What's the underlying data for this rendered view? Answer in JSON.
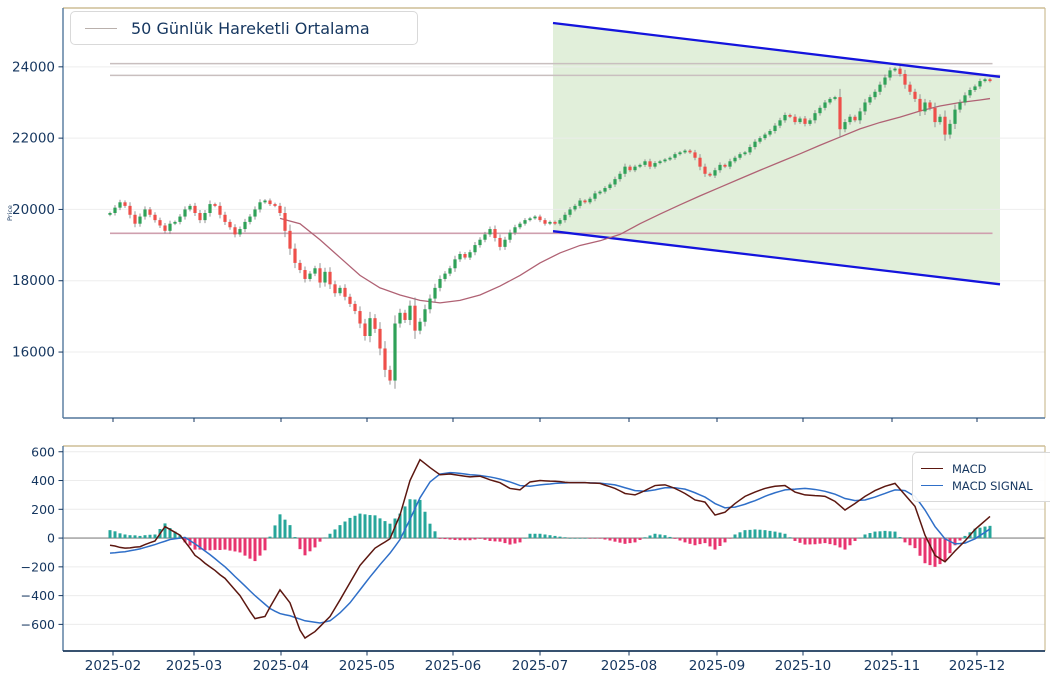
{
  "figure_title": "Candlestick price chart with 50-day moving average, descending channel and MACD indicator",
  "price_panel": {
    "ylabel": "Price",
    "legend": {
      "label": "50 Günlük Hareketli Ortalama",
      "sample_color": "#b9b0ac"
    },
    "yticks": [
      16000,
      18000,
      20000,
      22000,
      24000
    ],
    "ylim": [
      14150,
      25650
    ]
  },
  "macd_panel": {
    "legend": {
      "macd_label": "MACD",
      "signal_label": "MACD SIGNAL"
    },
    "yticks": [
      600,
      400,
      200,
      0,
      -200,
      -400,
      -600
    ],
    "ylim": [
      -785,
      640
    ]
  },
  "xticks": {
    "labels": [
      "2025-02",
      "2025-03",
      "2025-04",
      "2025-05",
      "2025-06",
      "2025-07",
      "2025-08",
      "2025-09",
      "2025-10",
      "2025-11",
      "2025-12"
    ],
    "idx": [
      0.6,
      16.8,
      34.2,
      51.4,
      68.6,
      86.0,
      103.8,
      121.4,
      138.6,
      156.4,
      173.4
    ]
  },
  "colors": {
    "candle_up": "#2fa158",
    "candle_down": "#ee4f4a",
    "wick": "#8a8a8a",
    "ma_line": "#b06274",
    "hline_gray": "#c9bfbf",
    "hline_rose": "#cf9fae",
    "channel_line": "#1414dd",
    "channel_fill": "#e1efda",
    "macd_line": "#5c1710",
    "signal_line": "#2f6fc8",
    "hist_up": "#26a69a",
    "hist_down": "#e8336e",
    "tick_text": "#15365f",
    "grid": "#ececec",
    "zero_line": "#9a9a9a",
    "spine_tan": "#cdbd96",
    "spine_blue": "#52779c",
    "axis_dark": "#1b3a5c"
  },
  "chart_data": [
    {
      "type": "candlestick",
      "title": "",
      "ylabel": "Price",
      "legend": [
        "50 Günlük Hareketli Ortalama"
      ],
      "ylim": [
        14150,
        25650
      ],
      "yticks": [
        16000,
        18000,
        20000,
        22000,
        24000
      ],
      "open_rule": "open equals previous close (first open 19850)",
      "wick_rule": {
        "base": 25,
        "body_factor": 0.3,
        "cap": 230
      },
      "close": [
        19900,
        20050,
        20200,
        20100,
        19850,
        19600,
        19800,
        20000,
        19850,
        19700,
        19550,
        19400,
        19600,
        19650,
        19800,
        20000,
        20100,
        19900,
        19700,
        19900,
        20150,
        20100,
        19850,
        19650,
        19500,
        19300,
        19450,
        19650,
        19800,
        20000,
        20200,
        20250,
        20150,
        20100,
        19900,
        19400,
        18900,
        18500,
        18300,
        18050,
        18200,
        18350,
        17950,
        18250,
        17900,
        17650,
        17800,
        17550,
        17350,
        17150,
        16800,
        16450,
        16950,
        16650,
        16100,
        15500,
        15200,
        16800,
        17100,
        16900,
        17300,
        16600,
        16850,
        17200,
        17500,
        17800,
        18050,
        18200,
        18350,
        18600,
        18750,
        18650,
        18800,
        19000,
        19150,
        19300,
        19450,
        19200,
        18950,
        19150,
        19350,
        19500,
        19600,
        19700,
        19750,
        19800,
        19700,
        19600,
        19650,
        19600,
        19700,
        19850,
        20000,
        20100,
        20250,
        20200,
        20300,
        20450,
        20500,
        20600,
        20700,
        20850,
        21000,
        21200,
        21100,
        21200,
        21250,
        21350,
        21200,
        21300,
        21350,
        21400,
        21450,
        21550,
        21600,
        21650,
        21600,
        21450,
        21200,
        21000,
        20950,
        21100,
        21250,
        21200,
        21350,
        21450,
        21550,
        21600,
        21750,
        21900,
        22000,
        22100,
        22200,
        22350,
        22500,
        22650,
        22600,
        22450,
        22550,
        22400,
        22500,
        22700,
        22850,
        23000,
        23100,
        23150,
        22250,
        22450,
        22600,
        22500,
        22750,
        23000,
        23150,
        23300,
        23500,
        23700,
        23900,
        23950,
        23800,
        23500,
        23300,
        23100,
        22750,
        23000,
        22850,
        22450,
        22600,
        22100,
        22400,
        22800,
        23000,
        23200,
        23350,
        23450,
        23600,
        23650,
        23600
      ],
      "ma50_points": [
        [
          34,
          19750
        ],
        [
          38,
          19600
        ],
        [
          42,
          19150
        ],
        [
          46,
          18650
        ],
        [
          50,
          18150
        ],
        [
          54,
          17800
        ],
        [
          58,
          17600
        ],
        [
          62,
          17450
        ],
        [
          66,
          17380
        ],
        [
          70,
          17450
        ],
        [
          74,
          17600
        ],
        [
          78,
          17850
        ],
        [
          82,
          18150
        ],
        [
          86,
          18500
        ],
        [
          90,
          18780
        ],
        [
          94,
          18990
        ],
        [
          98,
          19120
        ],
        [
          102,
          19300
        ],
        [
          106,
          19600
        ],
        [
          110,
          19870
        ],
        [
          114,
          20130
        ],
        [
          118,
          20380
        ],
        [
          122,
          20620
        ],
        [
          126,
          20860
        ],
        [
          130,
          21100
        ],
        [
          134,
          21330
        ],
        [
          138,
          21560
        ],
        [
          142,
          21800
        ],
        [
          146,
          22030
        ],
        [
          150,
          22260
        ],
        [
          154,
          22440
        ],
        [
          158,
          22590
        ],
        [
          162,
          22760
        ],
        [
          166,
          22900
        ],
        [
          170,
          23000
        ],
        [
          174,
          23070
        ],
        [
          176,
          23110
        ]
      ],
      "hlines": [
        {
          "value": 24090,
          "x0_idx": 0,
          "x1_idx": 176.5,
          "color_key": "hline_gray"
        },
        {
          "value": 23760,
          "x0_idx": 0,
          "x1_idx": 178.0,
          "color_key": "hline_gray"
        },
        {
          "value": 19330,
          "x0_idx": 0,
          "x1_idx": 176.5,
          "color_key": "hline_rose"
        }
      ],
      "channel": {
        "x0_idx": 88.6,
        "x1_idx": 178,
        "top_values": [
          25230,
          23720
        ],
        "bottom_values": [
          19390,
          17900
        ]
      }
    },
    {
      "type": "macd",
      "legend": [
        "MACD",
        "MACD SIGNAL"
      ],
      "ylim": [
        -785,
        640
      ],
      "yticks": [
        600,
        400,
        200,
        0,
        -200,
        -400,
        -600
      ],
      "histogram_rule": "histogram = macd - signal",
      "macd": [
        -50,
        -55,
        -65,
        -70,
        -68,
        -63,
        -60,
        -45,
        -32,
        -20,
        30,
        80,
        60,
        40,
        20,
        -25,
        -70,
        -120,
        -145,
        -175,
        -200,
        -225,
        -255,
        -280,
        -320,
        -360,
        -400,
        -455,
        -510,
        -560,
        -552,
        -545,
        -480,
        -420,
        -360,
        -405,
        -450,
        -545,
        -640,
        -695,
        -672,
        -650,
        -615,
        -580,
        -545,
        -488,
        -430,
        -370,
        -310,
        -250,
        -190,
        -150,
        -110,
        -70,
        -48,
        -27,
        -5,
        78,
        160,
        280,
        400,
        473,
        545,
        518,
        490,
        465,
        440,
        443,
        445,
        440,
        435,
        430,
        425,
        428,
        430,
        418,
        405,
        395,
        385,
        365,
        345,
        340,
        335,
        363,
        390,
        395,
        400,
        398,
        396,
        395,
        392,
        388,
        385,
        385,
        385,
        385,
        383,
        382,
        380,
        368,
        357,
        345,
        328,
        310,
        305,
        300,
        315,
        330,
        348,
        365,
        368,
        370,
        358,
        345,
        328,
        310,
        288,
        265,
        258,
        250,
        205,
        160,
        170,
        180,
        210,
        240,
        265,
        290,
        305,
        320,
        333,
        345,
        353,
        360,
        363,
        365,
        343,
        320,
        310,
        300,
        298,
        295,
        293,
        290,
        273,
        255,
        225,
        195,
        218,
        240,
        265,
        290,
        310,
        330,
        345,
        360,
        370,
        380,
        340,
        300,
        260,
        220,
        120,
        20,
        -50,
        -120,
        -143,
        -165,
        -128,
        -90,
        -55,
        -20,
        20,
        60,
        90,
        120,
        150
      ],
      "signal": [
        -105,
        -102,
        -98,
        -95,
        -88,
        -82,
        -75,
        -65,
        -55,
        -45,
        -33,
        -22,
        -10,
        -5,
        0,
        5,
        -18,
        -40,
        -65,
        -90,
        -115,
        -143,
        -172,
        -200,
        -233,
        -267,
        -300,
        -333,
        -367,
        -400,
        -430,
        -460,
        -490,
        -508,
        -525,
        -533,
        -540,
        -552,
        -563,
        -575,
        -580,
        -585,
        -590,
        -583,
        -575,
        -548,
        -520,
        -485,
        -450,
        -405,
        -360,
        -315,
        -270,
        -228,
        -185,
        -145,
        -105,
        -58,
        -10,
        60,
        130,
        205,
        280,
        335,
        390,
        418,
        445,
        450,
        455,
        453,
        450,
        445,
        440,
        438,
        435,
        430,
        425,
        418,
        410,
        400,
        390,
        378,
        365,
        363,
        360,
        365,
        370,
        373,
        376,
        380,
        382,
        383,
        385,
        385,
        385,
        385,
        384,
        383,
        382,
        378,
        374,
        370,
        360,
        350,
        340,
        330,
        328,
        325,
        330,
        335,
        343,
        350,
        350,
        350,
        345,
        340,
        328,
        315,
        300,
        285,
        263,
        240,
        225,
        210,
        213,
        215,
        225,
        235,
        248,
        260,
        275,
        290,
        303,
        315,
        325,
        335,
        338,
        340,
        343,
        345,
        342,
        338,
        332,
        325,
        315,
        305,
        290,
        275,
        268,
        260,
        263,
        265,
        275,
        285,
        298,
        310,
        323,
        335,
        333,
        330,
        310,
        290,
        243,
        195,
        138,
        80,
        38,
        -5,
        -23,
        -40,
        -38,
        -35,
        -20,
        -5,
        18,
        40,
        65
      ]
    }
  ]
}
